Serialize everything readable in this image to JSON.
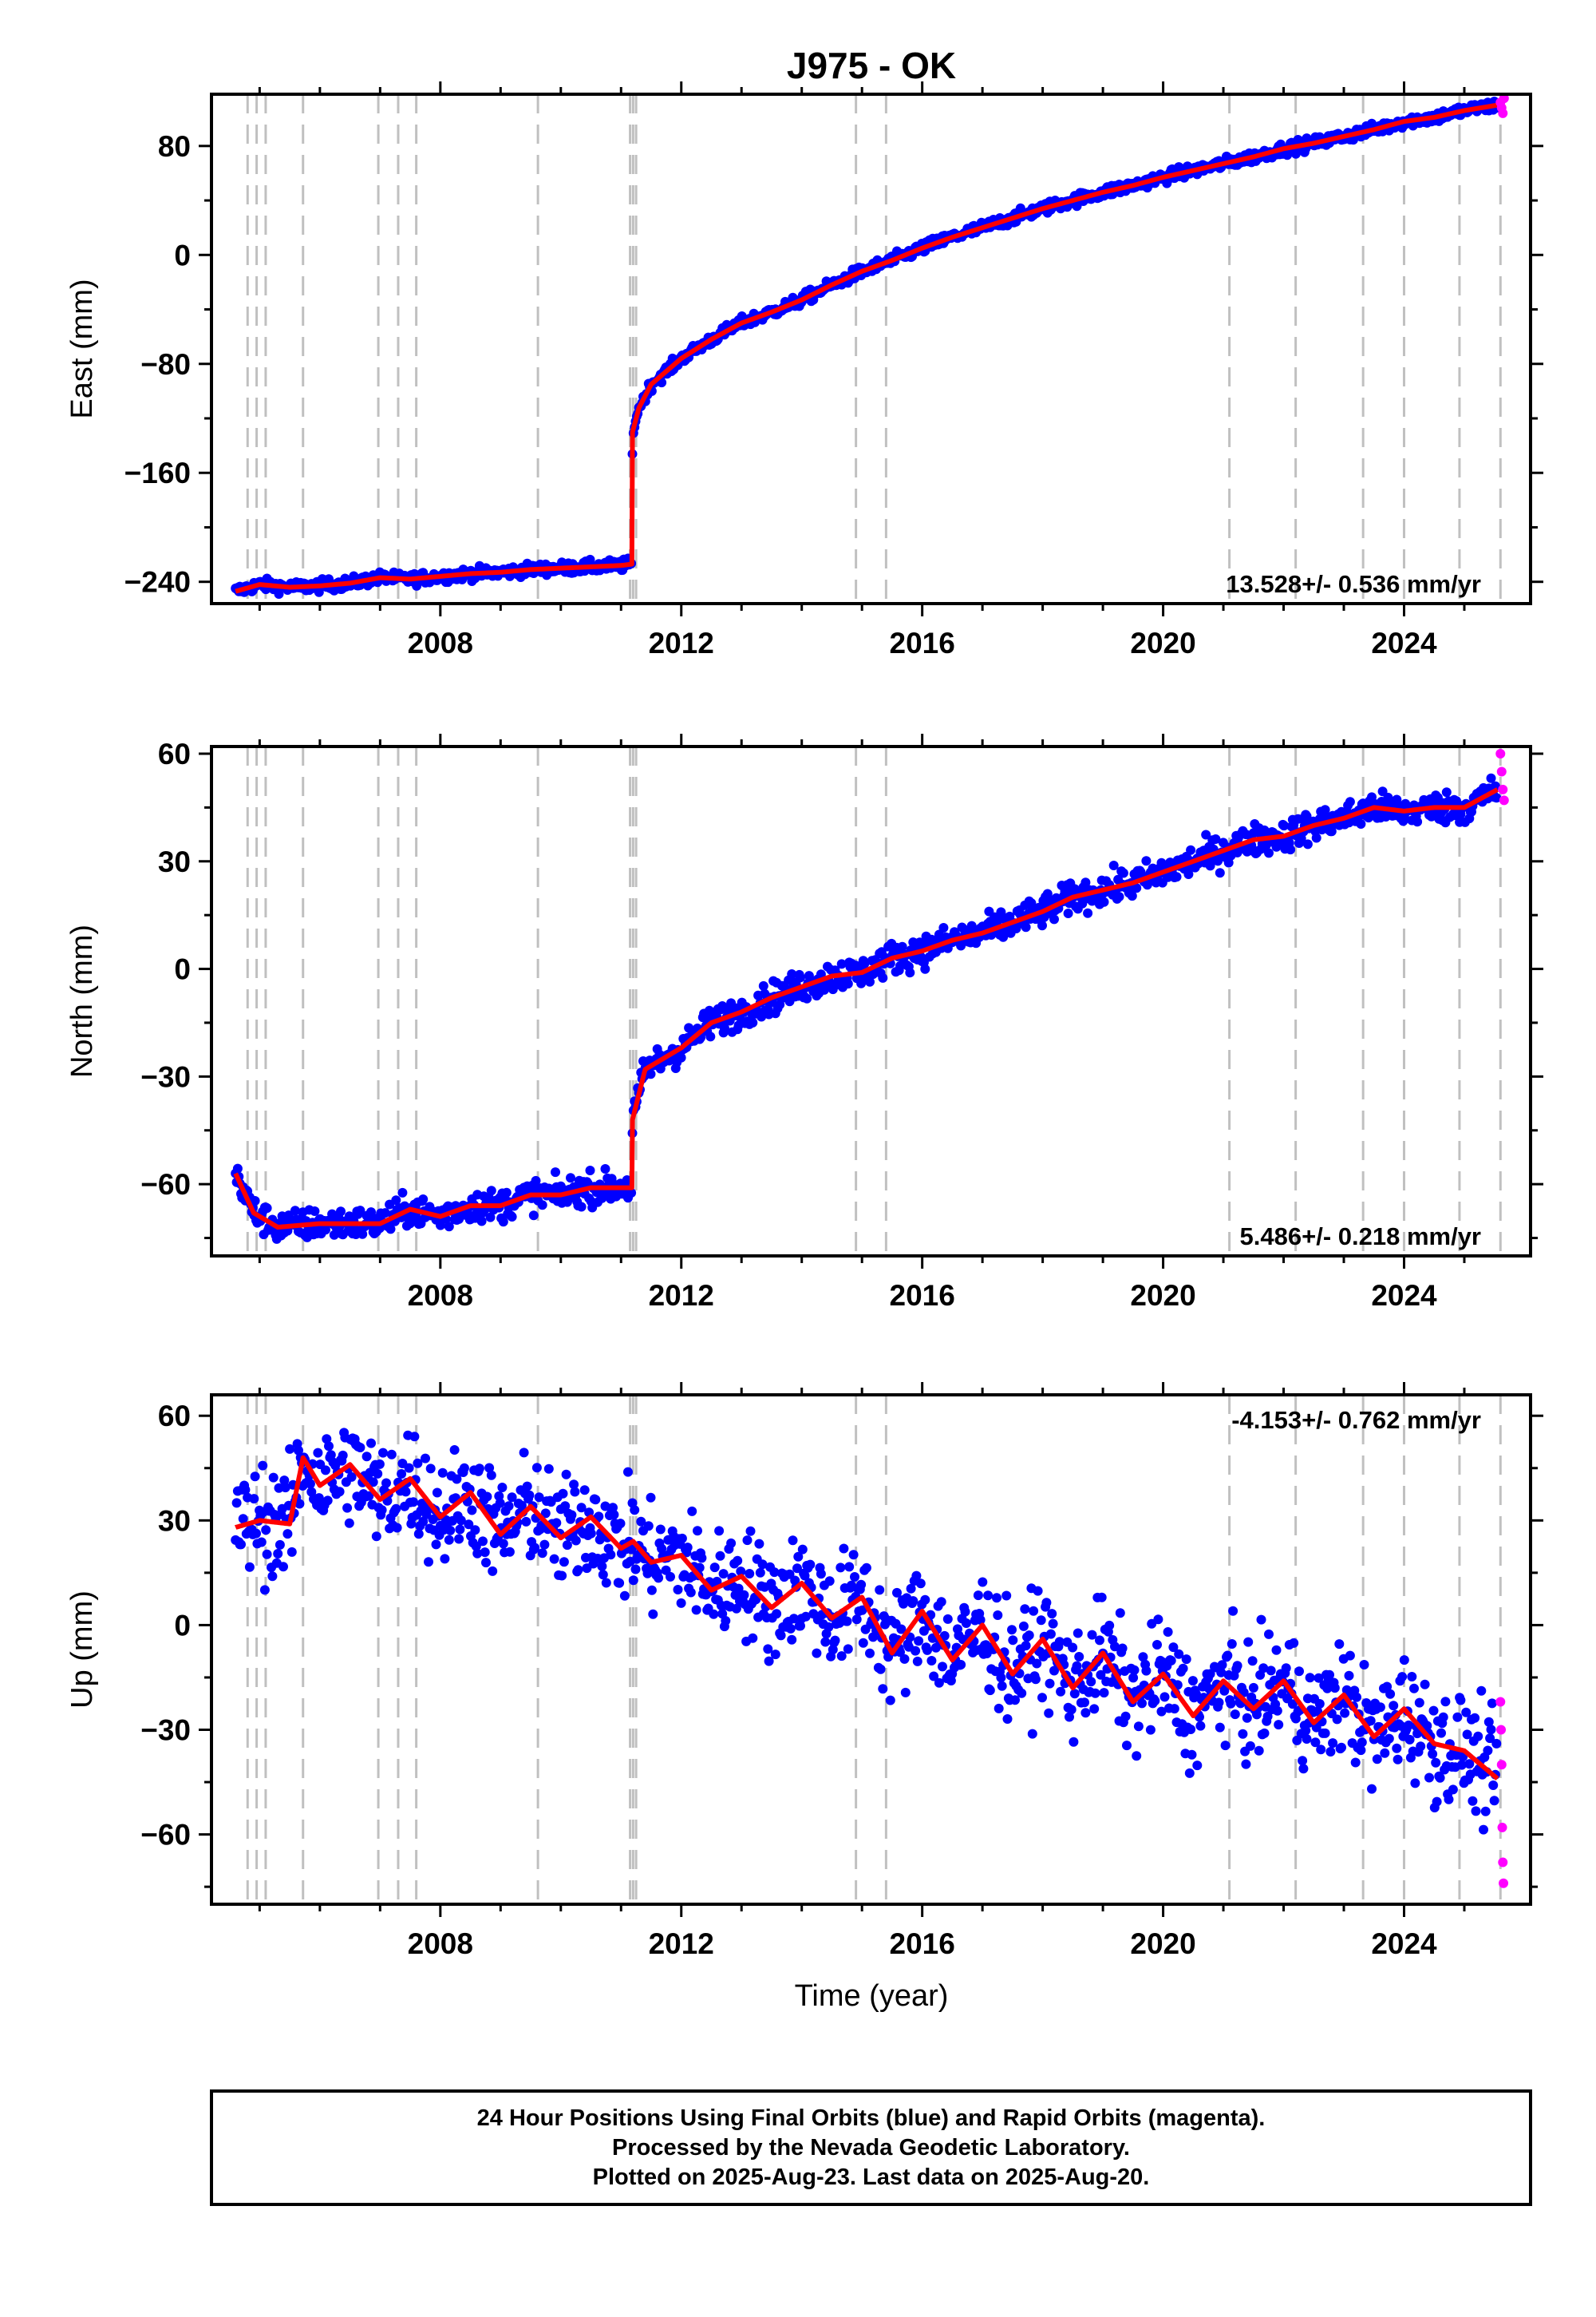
{
  "title": "J975 - OK",
  "xlabel": "Time (year)",
  "caption": [
    "24 Hour Positions Using Final Orbits (blue) and Rapid Orbits (magenta).",
    "Processed by the Nevada Geodetic Laboratory.",
    "Plotted on 2025-Aug-23. Last data on 2025-Aug-20."
  ],
  "colors": {
    "final": "#0000ff",
    "rapid": "#ff00ff",
    "model": "#ff0000",
    "event_lines": "#c0c0c0"
  },
  "chart_data": [
    {
      "type": "scatter",
      "panel": "east",
      "ylabel": "East (mm)",
      "rate": "13.528+/- 0.536 mm/yr",
      "xlim": [
        2004.2,
        2026.1
      ],
      "ylim": [
        -256,
        118
      ],
      "xticks": [
        2008,
        2012,
        2016,
        2020,
        2024
      ],
      "yticks": [
        -240,
        -160,
        -80,
        0,
        80
      ],
      "event_lines": [
        2004.8,
        2004.95,
        2005.1,
        2005.72,
        2006.97,
        2007.3,
        2007.6,
        2009.62,
        2011.15,
        2011.2,
        2011.25,
        2014.9,
        2015.4,
        2021.1,
        2022.2,
        2023.32,
        2024.0,
        2024.92,
        2025.6
      ],
      "series": [
        {
          "name": "final",
          "x": [
            2004.6,
            2005.0,
            2005.5,
            2006.0,
            2006.5,
            2007.0,
            2007.5,
            2008.0,
            2008.5,
            2009.0,
            2009.5,
            2010.0,
            2010.5,
            2011.0,
            2011.18,
            2011.19,
            2011.3,
            2011.5,
            2012.0,
            2012.5,
            2013.0,
            2013.5,
            2014.0,
            2014.5,
            2015.0,
            2015.5,
            2016.0,
            2016.5,
            2017.0,
            2017.5,
            2018.0,
            2018.5,
            2019.0,
            2019.5,
            2020.0,
            2020.5,
            2021.0,
            2021.5,
            2022.0,
            2022.5,
            2023.0,
            2023.5,
            2024.0,
            2024.5,
            2025.0,
            2025.55
          ],
          "y": [
            -247,
            -242,
            -244,
            -243,
            -241,
            -237,
            -238,
            -236,
            -234,
            -233,
            -231,
            -230,
            -229,
            -228,
            -227,
            -130,
            -112,
            -95,
            -76,
            -62,
            -50,
            -42,
            -33,
            -22,
            -12,
            -4,
            5,
            13,
            20,
            27,
            34,
            40,
            46,
            51,
            57,
            62,
            67,
            72,
            78,
            82,
            87,
            92,
            98,
            101,
            106,
            110
          ]
        },
        {
          "name": "rapid",
          "x": [
            2025.6,
            2025.62,
            2025.64,
            2025.66
          ],
          "y": [
            112,
            108,
            104,
            115
          ]
        }
      ]
    },
    {
      "type": "scatter",
      "panel": "north",
      "ylabel": "North (mm)",
      "rate": "5.486+/- 0.218 mm/yr",
      "xlim": [
        2004.2,
        2026.1
      ],
      "ylim": [
        -80,
        62
      ],
      "xticks": [
        2008,
        2012,
        2016,
        2020,
        2024
      ],
      "yticks": [
        -60,
        -30,
        0,
        30,
        60
      ],
      "event_lines": [
        2004.8,
        2004.95,
        2005.1,
        2005.72,
        2006.97,
        2007.3,
        2007.6,
        2009.62,
        2011.15,
        2011.2,
        2011.25,
        2014.9,
        2015.4,
        2021.1,
        2022.2,
        2023.32,
        2024.0,
        2024.92,
        2025.6
      ],
      "series": [
        {
          "name": "final",
          "x": [
            2004.6,
            2004.9,
            2005.3,
            2006.0,
            2006.5,
            2007.0,
            2007.5,
            2008.0,
            2008.5,
            2009.0,
            2009.5,
            2010.0,
            2010.5,
            2011.0,
            2011.18,
            2011.19,
            2011.4,
            2012.0,
            2012.5,
            2013.0,
            2013.5,
            2014.0,
            2014.5,
            2015.0,
            2015.5,
            2016.0,
            2016.5,
            2017.0,
            2017.5,
            2018.0,
            2018.5,
            2019.0,
            2019.5,
            2020.0,
            2020.5,
            2021.0,
            2021.5,
            2022.0,
            2022.5,
            2023.0,
            2023.5,
            2024.0,
            2024.5,
            2025.0,
            2025.55
          ],
          "y": [
            -57,
            -68,
            -72,
            -71,
            -71,
            -71,
            -67,
            -69,
            -66,
            -66,
            -63,
            -63,
            -61,
            -61,
            -61,
            -42,
            -28,
            -22,
            -15,
            -12,
            -8,
            -5,
            -2,
            -1,
            3,
            5,
            8,
            10,
            13,
            16,
            20,
            22,
            24,
            27,
            30,
            33,
            36,
            37,
            40,
            42,
            45,
            44,
            45,
            45,
            50
          ]
        },
        {
          "name": "rapid",
          "x": [
            2025.6,
            2025.62,
            2025.64,
            2025.66
          ],
          "y": [
            60,
            55,
            50,
            47
          ]
        }
      ]
    },
    {
      "type": "scatter",
      "panel": "up",
      "ylabel": "Up (mm)",
      "rate": "-4.153+/- 0.762 mm/yr",
      "xlim": [
        2004.2,
        2026.1
      ],
      "ylim": [
        -80,
        66
      ],
      "xticks": [
        2008,
        2012,
        2016,
        2020,
        2024
      ],
      "yticks": [
        -60,
        -30,
        0,
        30,
        60
      ],
      "event_lines": [
        2004.8,
        2004.95,
        2005.1,
        2005.72,
        2006.97,
        2007.3,
        2007.6,
        2009.62,
        2011.15,
        2011.2,
        2011.25,
        2014.9,
        2015.4,
        2021.1,
        2022.2,
        2023.32,
        2024.0,
        2024.92,
        2025.6
      ],
      "series": [
        {
          "name": "final",
          "x": [
            2004.6,
            2005.0,
            2005.5,
            2005.72,
            2006.0,
            2006.5,
            2007.0,
            2007.5,
            2008.0,
            2008.5,
            2009.0,
            2009.5,
            2010.0,
            2010.5,
            2011.0,
            2011.2,
            2011.5,
            2012.0,
            2012.5,
            2013.0,
            2013.5,
            2014.0,
            2014.5,
            2015.0,
            2015.5,
            2016.0,
            2016.5,
            2017.0,
            2017.5,
            2018.0,
            2018.5,
            2019.0,
            2019.5,
            2020.0,
            2020.5,
            2021.0,
            2021.5,
            2022.0,
            2022.5,
            2023.0,
            2023.5,
            2024.0,
            2024.5,
            2025.0,
            2025.55
          ],
          "y": [
            28,
            30,
            29,
            48,
            40,
            46,
            36,
            42,
            31,
            38,
            26,
            34,
            25,
            31,
            22,
            24,
            18,
            20,
            10,
            14,
            5,
            12,
            2,
            8,
            -8,
            4,
            -10,
            0,
            -14,
            -4,
            -18,
            -8,
            -22,
            -14,
            -26,
            -16,
            -24,
            -16,
            -28,
            -20,
            -32,
            -24,
            -34,
            -36,
            -44
          ]
        },
        {
          "name": "rapid",
          "x": [
            2025.6,
            2025.61,
            2025.62,
            2025.63,
            2025.64,
            2025.65
          ],
          "y": [
            -22,
            -30,
            -40,
            -58,
            -68,
            -74
          ]
        }
      ]
    }
  ]
}
